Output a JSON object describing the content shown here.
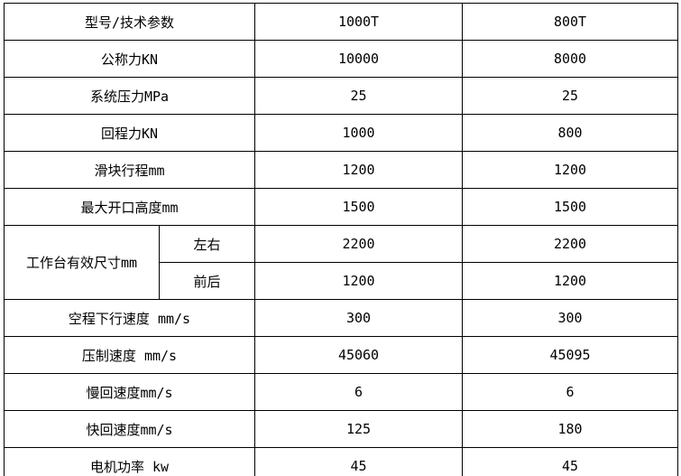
{
  "table": {
    "title_semantic": "press-machine-spec-table",
    "columns": {
      "param_header": "型号/技术参数",
      "model_1": "1000T",
      "model_2": "800T"
    },
    "rows": [
      {
        "label": "型号/技术参数",
        "c1": "1000T",
        "c2": "800T"
      },
      {
        "label": "公称力KN",
        "c1": "10000",
        "c2": "8000"
      },
      {
        "label": "系统压力MPa",
        "c1": "25",
        "c2": "25"
      },
      {
        "label": "回程力KN",
        "c1": "1000",
        "c2": "800"
      },
      {
        "label": "滑块行程mm",
        "c1": "1200",
        "c2": "1200"
      },
      {
        "label": "最大开口高度mm",
        "c1": "1500",
        "c2": "1500"
      },
      {
        "group_label": "工作台有效尺寸mm",
        "sub_label": "左右",
        "c1": "2200",
        "c2": "2200"
      },
      {
        "sub_label": "前后",
        "c1": "1200",
        "c2": "1200"
      },
      {
        "label": "空程下行速度 mm/s",
        "c1": "300",
        "c2": "300"
      },
      {
        "label": "压制速度 mm/s",
        "c1": "45060",
        "c2": "45095"
      },
      {
        "label": "慢回速度mm/s",
        "c1": "6",
        "c2": "6"
      },
      {
        "label": "快回速度mm/s",
        "c1": "125",
        "c2": "180"
      },
      {
        "label": "电机功率 kw",
        "c1": "45",
        "c2": "45"
      }
    ],
    "colors": {
      "border": "#000000",
      "text": "#000000",
      "background": "#ffffff"
    }
  }
}
